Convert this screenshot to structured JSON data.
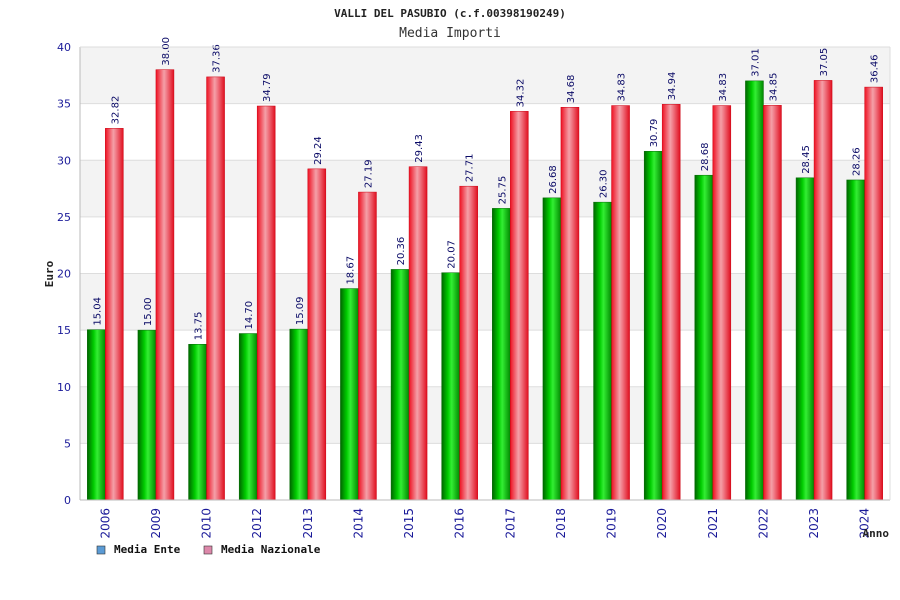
{
  "chart_data": {
    "type": "bar",
    "title": "VALLI DEL PASUBIO (c.f.00398190249)",
    "subtitle": "Media Importi",
    "xlabel": "Anno",
    "ylabel": "Euro",
    "ylim": [
      0,
      40
    ],
    "yticks": [
      0,
      5,
      10,
      15,
      20,
      25,
      30,
      35,
      40
    ],
    "grid": true,
    "legend_position": "bottom-left",
    "categories": [
      "2006",
      "2009",
      "2010",
      "2012",
      "2013",
      "2014",
      "2015",
      "2016",
      "2017",
      "2018",
      "2019",
      "2020",
      "2021",
      "2022",
      "2023",
      "2024"
    ],
    "series": [
      {
        "name": "Media Ente",
        "color": "#00bb00",
        "legend_color": "#5b9bd5",
        "values": [
          15.04,
          15.0,
          13.75,
          14.7,
          15.09,
          18.67,
          20.36,
          20.07,
          25.75,
          26.68,
          26.3,
          30.79,
          28.68,
          37.01,
          28.45,
          28.26
        ],
        "labels": [
          "15.04",
          "15.00",
          "13.75",
          "14.70",
          "15.09",
          "18.67",
          "20.36",
          "20.07",
          "25.75",
          "26.68",
          "26.30",
          "30.79",
          "28.68",
          "37.01",
          "28.45",
          "28.26"
        ]
      },
      {
        "name": "Media Nazionale",
        "color": "#ee1111",
        "legend_color": "#dd88aa",
        "values": [
          32.82,
          38.0,
          37.36,
          34.79,
          29.24,
          27.19,
          29.43,
          27.71,
          34.32,
          34.68,
          34.83,
          34.94,
          34.83,
          34.85,
          37.05,
          36.46
        ],
        "labels": [
          "32.82",
          "38.00",
          "37.36",
          "34.79",
          "29.24",
          "27.19",
          "29.43",
          "27.71",
          "34.32",
          "34.68",
          "34.83",
          "34.94",
          "34.83",
          "34.85",
          "37.05",
          "36.46"
        ]
      }
    ]
  }
}
